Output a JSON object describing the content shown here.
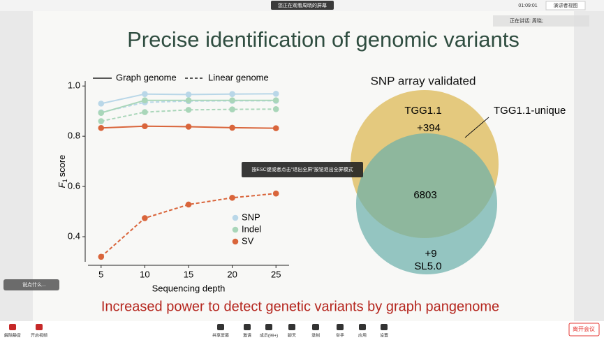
{
  "top_bar": {
    "notice": "您正在观看周晓的屏幕",
    "timer": "01:09:01",
    "view_button": "演讲者视图",
    "speaking": "正在讲话: 周晓;"
  },
  "slide": {
    "title": "Precise identification of genomic variants",
    "footer": "Increased power to detect genetic variants by graph pangenome"
  },
  "chart_data": {
    "type": "line",
    "x": [
      5,
      10,
      15,
      20,
      25
    ],
    "xlim": [
      3.5,
      26.5
    ],
    "xticks": [
      5,
      10,
      15,
      20,
      25
    ],
    "ylim": [
      0.3,
      1.02
    ],
    "yticks": [
      0.4,
      0.6,
      0.8,
      {
        "value": 1,
        "label": "1.0"
      }
    ],
    "xlabel": "Sequencing depth",
    "ylabel": {
      "main": "F",
      "sub": "1",
      "rest": "score"
    },
    "line_legend": [
      "Graph genome",
      "Linear genome"
    ],
    "series": [
      {
        "name": "SNP",
        "color": "#b9d7e8",
        "graph": [
          0.93,
          0.968,
          0.966,
          0.968,
          0.969
        ],
        "linear": [
          0.895,
          0.935,
          0.94,
          0.941,
          0.941
        ]
      },
      {
        "name": "Indel",
        "color": "#a9d6b9",
        "graph": [
          0.893,
          0.943,
          0.943,
          0.943,
          0.943
        ],
        "linear": [
          0.86,
          0.896,
          0.905,
          0.907,
          0.908
        ]
      },
      {
        "name": "SV",
        "color": "#d9653b",
        "graph": [
          0.833,
          0.84,
          0.838,
          0.834,
          0.832
        ],
        "linear": [
          0.32,
          0.474,
          0.528,
          0.555,
          0.572
        ]
      }
    ]
  },
  "venn": {
    "title": "SNP array validated",
    "top_name": "TGG1.1",
    "top_unique": "+394",
    "overlap": "6803",
    "bottom_unique": "+9",
    "bottom_name": "SL5.0",
    "callout": "TGG1.1-unique"
  },
  "tooltip": "按ESC键或者点击\"退出全屏\"按钮退出全屏模式",
  "chat_placeholder": "说点什么...",
  "toolbar": {
    "mute": "解除静音",
    "video": "开启视频",
    "share": "共享屏幕",
    "invite": "邀请",
    "members": "成员(99+)",
    "chat": "聊天",
    "record": "录制",
    "hand": "举手",
    "apps": "应用",
    "settings": "设置",
    "leave": "离开会议"
  }
}
